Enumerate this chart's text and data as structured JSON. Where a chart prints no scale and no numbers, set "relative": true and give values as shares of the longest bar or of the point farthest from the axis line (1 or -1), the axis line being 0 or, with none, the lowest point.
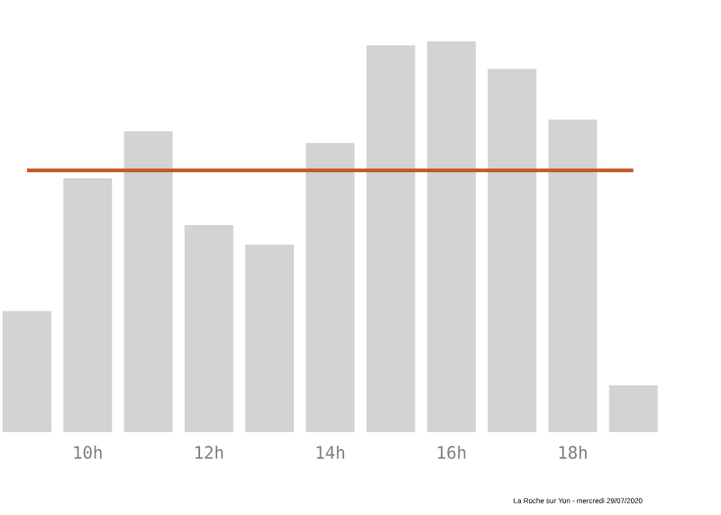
{
  "chart_data": {
    "type": "bar",
    "relative": true,
    "categories": [
      null,
      "10h",
      null,
      "12h",
      null,
      "14h",
      null,
      "16h",
      null,
      "18h",
      null
    ],
    "values": [
      0.31,
      0.65,
      0.77,
      0.53,
      0.48,
      0.74,
      0.99,
      1,
      0.93,
      0.8,
      0.12
    ],
    "color": "#d3d3d3",
    "ref_lines": [
      {
        "axis": "y",
        "value": 0.67,
        "color": "#c8561e"
      }
    ],
    "annotations": [
      "La Roche sur Yon - mercredi 29/07/2020"
    ]
  }
}
